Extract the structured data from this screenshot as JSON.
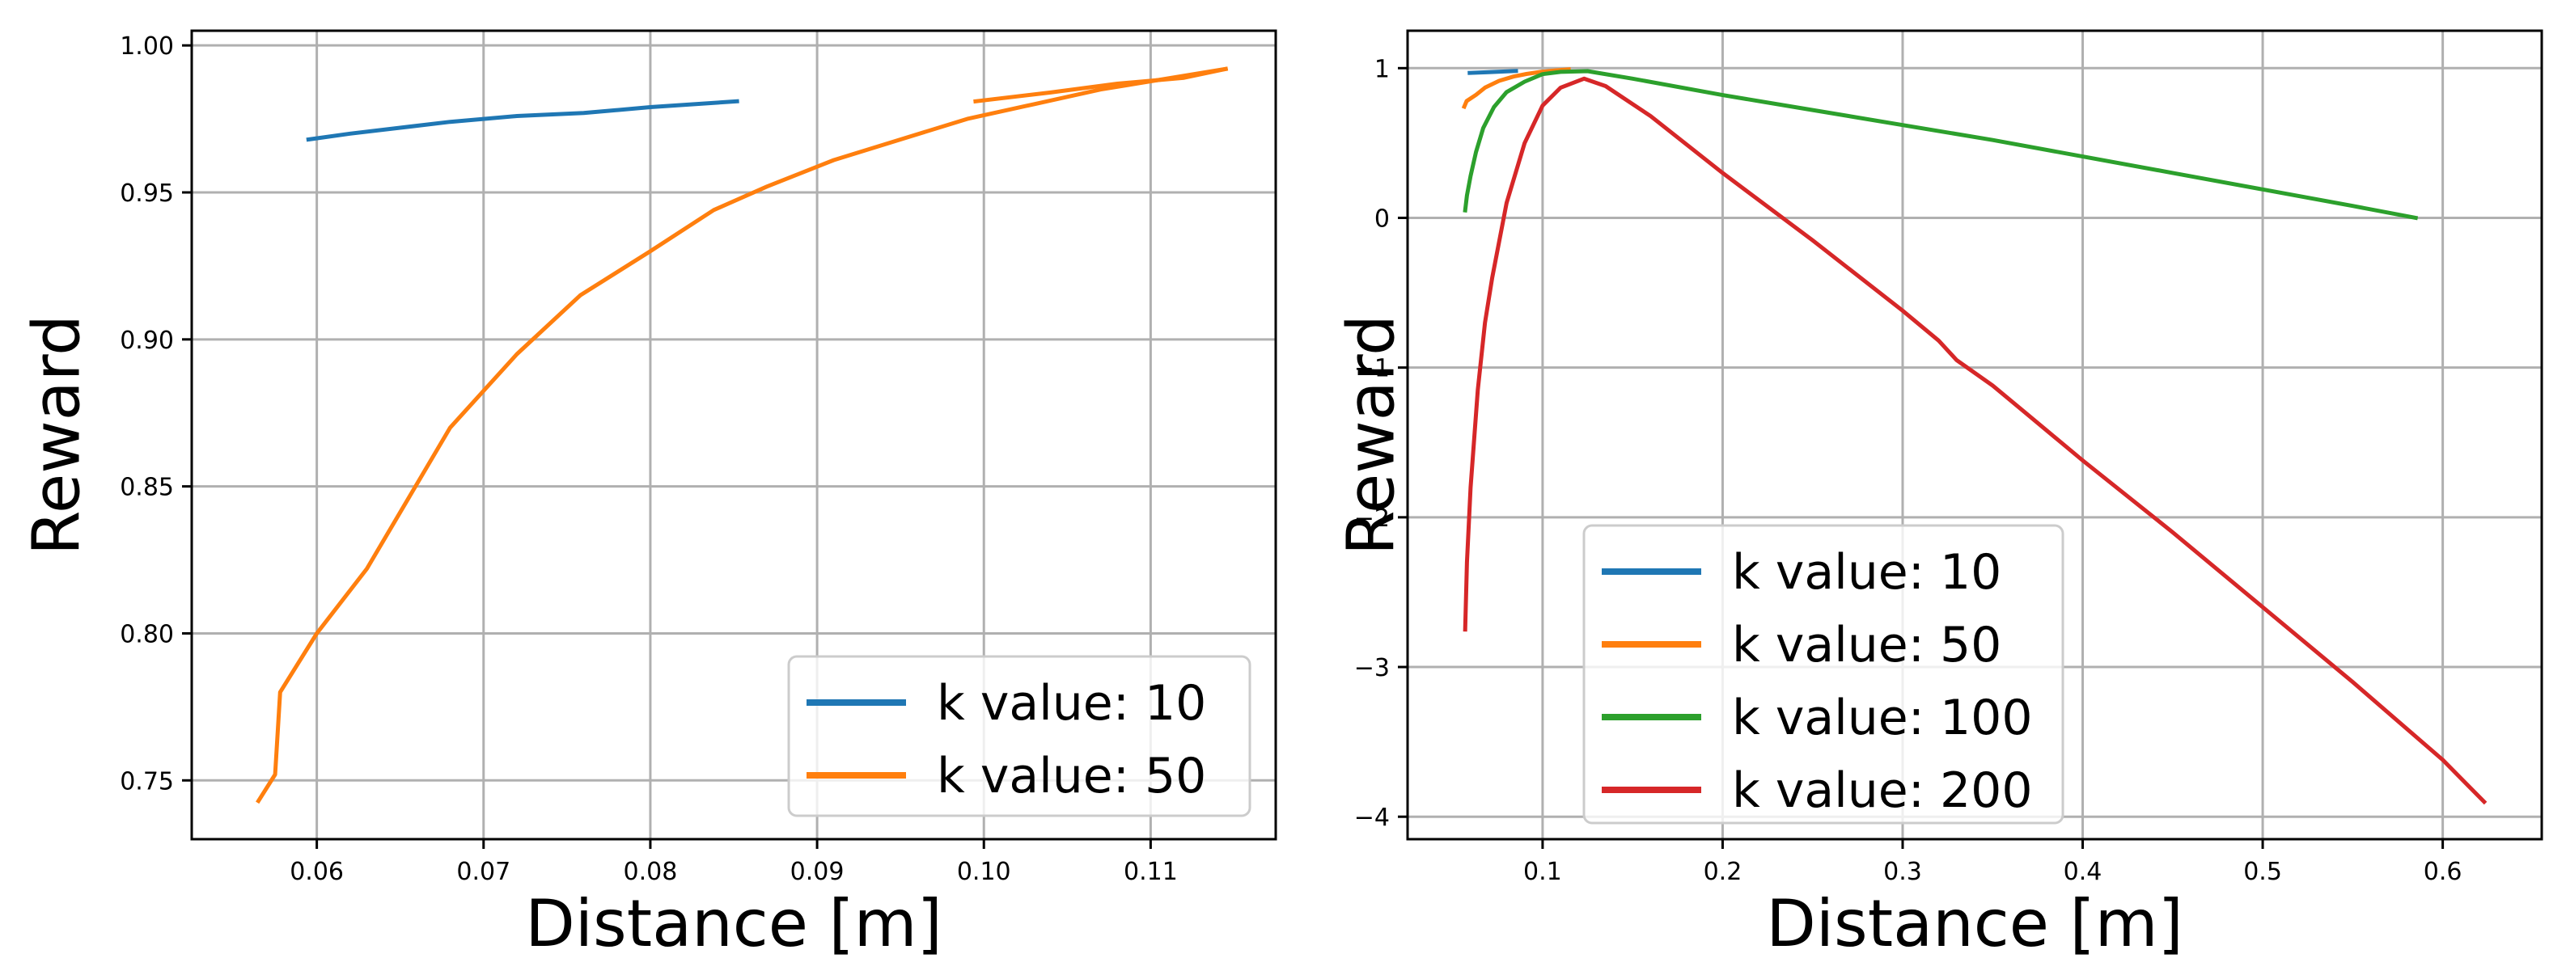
{
  "chart_data": [
    {
      "type": "line",
      "xlabel": "Distance [m]",
      "ylabel": "Reward",
      "xlim": [
        0.0525,
        0.1175
      ],
      "ylim": [
        0.73,
        1.005
      ],
      "xticks": [
        0.06,
        0.07,
        0.08,
        0.09,
        0.1,
        0.11
      ],
      "xtick_labels": [
        "0.06",
        "0.07",
        "0.08",
        "0.09",
        "0.10",
        "0.11"
      ],
      "yticks": [
        0.75,
        0.8,
        0.85,
        0.9,
        0.95,
        1.0
      ],
      "ytick_labels": [
        "0.75",
        "0.80",
        "0.85",
        "0.90",
        "0.95",
        "1.00"
      ],
      "grid": true,
      "legend_position": "lower-right",
      "series": [
        {
          "name": "k value: 10",
          "color": "#1f77b4",
          "points": [
            [
              0.0595,
              0.968
            ],
            [
              0.062,
              0.97
            ],
            [
              0.065,
              0.972
            ],
            [
              0.068,
              0.974
            ],
            [
              0.072,
              0.976
            ],
            [
              0.076,
              0.977
            ],
            [
              0.08,
              0.979
            ],
            [
              0.0852,
              0.981
            ]
          ]
        },
        {
          "name": "k value: 50",
          "color": "#ff7f0e",
          "points": [
            [
              0.0565,
              0.743
            ],
            [
              0.0575,
              0.752
            ],
            [
              0.0578,
              0.78
            ],
            [
              0.06,
              0.8
            ],
            [
              0.063,
              0.822
            ],
            [
              0.068,
              0.87
            ],
            [
              0.072,
              0.895
            ],
            [
              0.0758,
              0.915
            ],
            [
              0.08,
              0.93
            ],
            [
              0.0838,
              0.944
            ],
            [
              0.087,
              0.952
            ],
            [
              0.091,
              0.961
            ],
            [
              0.095,
              0.968
            ],
            [
              0.099,
              0.975
            ],
            [
              0.103,
              0.98
            ],
            [
              0.107,
              0.985
            ],
            [
              0.1145,
              0.992
            ]
          ]
        },
        {
          "name": "",
          "color": "#ff7f0e",
          "points": [
            [
              0.0995,
              0.981
            ],
            [
              0.104,
              0.984
            ],
            [
              0.108,
              0.987
            ],
            [
              0.112,
              0.989
            ],
            [
              0.1145,
              0.992
            ]
          ]
        }
      ]
    },
    {
      "type": "line",
      "xlabel": "Distance [m]",
      "ylabel": "Reward",
      "xlim": [
        0.025,
        0.655
      ],
      "ylim": [
        -4.15,
        1.25
      ],
      "xticks": [
        0.1,
        0.2,
        0.3,
        0.4,
        0.5,
        0.6
      ],
      "xtick_labels": [
        "0.1",
        "0.2",
        "0.3",
        "0.4",
        "0.5",
        "0.6"
      ],
      "yticks": [
        -4,
        -3,
        -2,
        -1,
        0,
        1
      ],
      "ytick_labels": [
        "−4",
        "−3",
        "−2",
        "−1",
        "0",
        "1"
      ],
      "grid": true,
      "legend_position": "lower-left",
      "series": [
        {
          "name": "k value: 10",
          "color": "#1f77b4",
          "points": [
            [
              0.0595,
              0.968
            ],
            [
              0.07,
              0.973
            ],
            [
              0.0852,
              0.981
            ]
          ]
        },
        {
          "name": "k value: 50",
          "color": "#ff7f0e",
          "points": [
            [
              0.0565,
              0.743
            ],
            [
              0.0578,
              0.78
            ],
            [
              0.063,
              0.822
            ],
            [
              0.068,
              0.87
            ],
            [
              0.0758,
              0.915
            ],
            [
              0.0838,
              0.944
            ],
            [
              0.091,
              0.961
            ],
            [
              0.099,
              0.975
            ],
            [
              0.107,
              0.985
            ],
            [
              0.1145,
              0.992
            ]
          ]
        },
        {
          "name": "k value: 100",
          "color": "#2ca02c",
          "points": [
            [
              0.057,
              0.05
            ],
            [
              0.058,
              0.15
            ],
            [
              0.06,
              0.28
            ],
            [
              0.063,
              0.44
            ],
            [
              0.067,
              0.6
            ],
            [
              0.073,
              0.74
            ],
            [
              0.08,
              0.84
            ],
            [
              0.09,
              0.91
            ],
            [
              0.1,
              0.96
            ],
            [
              0.11,
              0.975
            ],
            [
              0.125,
              0.98
            ],
            [
              0.15,
              0.93
            ],
            [
              0.2,
              0.82
            ],
            [
              0.25,
              0.72
            ],
            [
              0.3,
              0.62
            ],
            [
              0.35,
              0.52
            ],
            [
              0.4,
              0.41
            ],
            [
              0.45,
              0.3
            ],
            [
              0.5,
              0.19
            ],
            [
              0.55,
              0.08
            ],
            [
              0.585,
              0.0
            ]
          ]
        },
        {
          "name": "k value: 200",
          "color": "#d62728",
          "points": [
            [
              0.057,
              -2.75
            ],
            [
              0.058,
              -2.3
            ],
            [
              0.06,
              -1.8
            ],
            [
              0.064,
              -1.15
            ],
            [
              0.068,
              -0.7
            ],
            [
              0.072,
              -0.4
            ],
            [
              0.08,
              0.1
            ],
            [
              0.09,
              0.5
            ],
            [
              0.1,
              0.75
            ],
            [
              0.11,
              0.87
            ],
            [
              0.123,
              0.93
            ],
            [
              0.135,
              0.88
            ],
            [
              0.16,
              0.68
            ],
            [
              0.2,
              0.3
            ],
            [
              0.25,
              -0.15
            ],
            [
              0.3,
              -0.62
            ],
            [
              0.32,
              -0.82
            ],
            [
              0.33,
              -0.95
            ],
            [
              0.35,
              -1.12
            ],
            [
              0.38,
              -1.42
            ],
            [
              0.4,
              -1.62
            ],
            [
              0.45,
              -2.1
            ],
            [
              0.5,
              -2.6
            ],
            [
              0.55,
              -3.1
            ],
            [
              0.6,
              -3.62
            ],
            [
              0.623,
              -3.9
            ]
          ]
        }
      ]
    }
  ]
}
